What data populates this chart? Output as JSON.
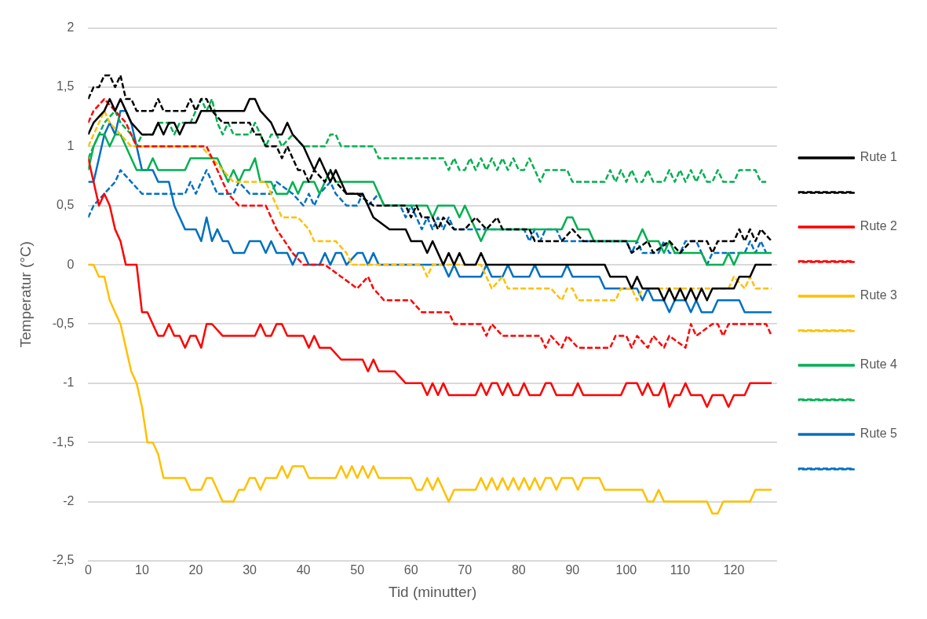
{
  "chart_data": {
    "type": "line",
    "xlabel": "Tid (minutter)",
    "ylabel": "Temperatur (°C)",
    "xlim": [
      0,
      128
    ],
    "xticks": [
      0,
      10,
      20,
      30,
      40,
      50,
      60,
      70,
      80,
      90,
      100,
      110,
      120
    ],
    "ylim": [
      -2.5,
      2
    ],
    "yticks": [
      {
        "value": -2.5,
        "label": "-2,5"
      },
      -2,
      {
        "value": -1.5,
        "label": "-1,5"
      },
      -1,
      {
        "value": -0.5,
        "label": "-0,5"
      },
      0,
      {
        "value": 0.5,
        "label": "0,5"
      },
      1,
      {
        "value": 1.5,
        "label": "1,5"
      },
      2
    ],
    "grid": "y",
    "legend": "right",
    "marker": "none",
    "series": [
      {
        "name": "Rute 1",
        "color": "#000000",
        "line_style": "solid",
        "x": [
          0,
          1,
          3,
          4,
          5,
          6,
          7,
          8,
          10,
          12,
          13,
          14,
          15,
          16,
          17,
          18,
          20,
          21,
          29,
          30,
          31,
          32,
          34,
          35,
          36,
          37,
          38,
          40,
          41,
          42,
          43,
          44,
          45,
          46,
          47,
          48,
          51,
          52,
          53,
          56,
          59,
          60,
          62,
          63,
          64,
          65,
          66,
          67,
          68,
          69,
          70,
          72,
          73,
          74,
          96,
          97,
          100,
          101,
          102,
          103,
          106,
          107,
          108,
          109,
          110,
          111,
          112,
          113,
          114,
          115,
          116,
          120,
          121,
          123,
          124,
          127
        ],
        "values": [
          1.1,
          1.2,
          1.3,
          1.4,
          1.3,
          1.4,
          1.3,
          1.2,
          1.1,
          1.1,
          1.2,
          1.1,
          1.2,
          1.2,
          1.1,
          1.2,
          1.2,
          1.3,
          1.3,
          1.4,
          1.4,
          1.3,
          1.2,
          1.1,
          1.1,
          1.2,
          1.1,
          1.0,
          0.9,
          0.8,
          0.9,
          0.8,
          0.7,
          0.8,
          0.7,
          0.6,
          0.6,
          0.5,
          0.4,
          0.3,
          0.3,
          0.2,
          0.2,
          0.1,
          0.2,
          0.1,
          0.0,
          0.1,
          0.0,
          0.1,
          0.0,
          0.0,
          0.1,
          0.0,
          0.0,
          -0.1,
          -0.1,
          -0.2,
          -0.1,
          -0.2,
          -0.2,
          -0.3,
          -0.2,
          -0.3,
          -0.2,
          -0.3,
          -0.2,
          -0.3,
          -0.2,
          -0.3,
          -0.2,
          -0.2,
          -0.1,
          -0.1,
          0.0,
          0.0
        ]
      },
      {
        "color": "#000000",
        "line_style": "dashed",
        "x": [
          0,
          1,
          2,
          3,
          4,
          5,
          6,
          7,
          8,
          9,
          10,
          12,
          13,
          14,
          15,
          17,
          18,
          19,
          20,
          21,
          22,
          23,
          25,
          29,
          30,
          31,
          32,
          33,
          34,
          35,
          36,
          37,
          38,
          39,
          40,
          41,
          42,
          44,
          45,
          46,
          48,
          50,
          53,
          57,
          59,
          60,
          61,
          62,
          64,
          65,
          66,
          68,
          70,
          72,
          74,
          76,
          77,
          80,
          82,
          83,
          88,
          90,
          92,
          100,
          101,
          104,
          105,
          108,
          110,
          112,
          115,
          116,
          117,
          120,
          121,
          122,
          123,
          124,
          125,
          127
        ],
        "values": [
          1.4,
          1.5,
          1.5,
          1.6,
          1.6,
          1.5,
          1.6,
          1.4,
          1.4,
          1.3,
          1.3,
          1.3,
          1.4,
          1.3,
          1.3,
          1.3,
          1.3,
          1.4,
          1.3,
          1.4,
          1.4,
          1.3,
          1.2,
          1.2,
          1.2,
          1.1,
          1.1,
          1.0,
          1.0,
          1.0,
          0.9,
          1.0,
          0.9,
          0.8,
          0.8,
          0.7,
          0.8,
          0.7,
          0.8,
          0.7,
          0.6,
          0.6,
          0.5,
          0.5,
          0.5,
          0.4,
          0.5,
          0.4,
          0.4,
          0.3,
          0.4,
          0.3,
          0.3,
          0.4,
          0.3,
          0.4,
          0.3,
          0.3,
          0.3,
          0.2,
          0.2,
          0.3,
          0.2,
          0.2,
          0.1,
          0.2,
          0.1,
          0.2,
          0.1,
          0.2,
          0.2,
          0.1,
          0.2,
          0.2,
          0.3,
          0.2,
          0.3,
          0.2,
          0.3,
          0.2
        ]
      },
      {
        "name": "Rute 2",
        "color": "#ff0000",
        "line_style": "solid",
        "x": [
          0,
          1,
          2,
          3,
          4,
          5,
          6,
          7,
          9,
          10,
          11,
          12,
          13,
          14,
          15,
          16,
          17,
          18,
          19,
          20,
          21,
          22,
          23,
          25,
          31,
          32,
          33,
          34,
          35,
          36,
          37,
          40,
          41,
          42,
          43,
          45,
          47,
          51,
          52,
          53,
          54,
          57,
          59,
          62,
          63,
          64,
          65,
          66,
          67,
          72,
          73,
          74,
          75,
          76,
          77,
          78,
          79,
          80,
          81,
          82,
          84,
          85,
          86,
          87,
          90,
          91,
          92,
          99,
          100,
          102,
          103,
          104,
          105,
          106,
          107,
          108,
          109,
          110,
          111,
          112,
          114,
          115,
          116,
          118,
          119,
          120,
          122,
          123,
          127
        ],
        "values": [
          0.9,
          0.7,
          0.5,
          0.6,
          0.5,
          0.3,
          0.2,
          0.0,
          0.0,
          -0.4,
          -0.4,
          -0.5,
          -0.6,
          -0.6,
          -0.5,
          -0.6,
          -0.6,
          -0.7,
          -0.6,
          -0.6,
          -0.7,
          -0.5,
          -0.5,
          -0.6,
          -0.6,
          -0.5,
          -0.6,
          -0.6,
          -0.5,
          -0.5,
          -0.6,
          -0.6,
          -0.7,
          -0.6,
          -0.7,
          -0.7,
          -0.8,
          -0.8,
          -0.9,
          -0.8,
          -0.9,
          -0.9,
          -1.0,
          -1.0,
          -1.1,
          -1.0,
          -1.1,
          -1.0,
          -1.1,
          -1.1,
          -1.0,
          -1.1,
          -1.0,
          -1.0,
          -1.1,
          -1.0,
          -1.1,
          -1.1,
          -1.0,
          -1.1,
          -1.1,
          -1.0,
          -1.0,
          -1.1,
          -1.1,
          -1.0,
          -1.1,
          -1.1,
          -1.0,
          -1.0,
          -1.1,
          -1.0,
          -1.1,
          -1.1,
          -1.0,
          -1.2,
          -1.1,
          -1.1,
          -1.0,
          -1.1,
          -1.1,
          -1.2,
          -1.1,
          -1.1,
          -1.2,
          -1.1,
          -1.1,
          -1.0,
          -1.0
        ]
      },
      {
        "color": "#ff0000",
        "line_style": "dashed",
        "x": [
          0,
          1,
          3,
          5,
          7,
          8,
          9,
          22,
          24,
          26,
          28,
          33,
          35,
          38,
          40,
          44,
          47,
          50,
          52,
          53,
          55,
          60,
          62,
          67,
          68,
          73,
          74,
          75,
          77,
          84,
          85,
          86,
          88,
          89,
          91,
          97,
          98,
          100,
          101,
          102,
          104,
          105,
          107,
          108,
          111,
          112,
          113,
          116,
          117,
          118,
          119,
          126,
          127
        ],
        "values": [
          1.2,
          1.3,
          1.4,
          1.3,
          1.2,
          1.1,
          1.0,
          1.0,
          0.8,
          0.6,
          0.5,
          0.5,
          0.3,
          0.1,
          0.0,
          0.0,
          -0.1,
          -0.2,
          -0.1,
          -0.2,
          -0.3,
          -0.3,
          -0.4,
          -0.4,
          -0.5,
          -0.5,
          -0.6,
          -0.5,
          -0.6,
          -0.6,
          -0.7,
          -0.6,
          -0.7,
          -0.6,
          -0.7,
          -0.7,
          -0.6,
          -0.6,
          -0.7,
          -0.6,
          -0.7,
          -0.6,
          -0.7,
          -0.6,
          -0.7,
          -0.5,
          -0.6,
          -0.5,
          -0.5,
          -0.6,
          -0.5,
          -0.5,
          -0.6
        ]
      },
      {
        "name": "Rute 3",
        "color": "#ffc000",
        "line_style": "solid",
        "x": [
          0,
          1,
          2,
          3,
          4,
          5,
          6,
          7,
          8,
          9,
          10,
          11,
          12,
          13,
          14,
          18,
          19,
          21,
          22,
          23,
          24,
          25,
          27,
          28,
          29,
          30,
          31,
          32,
          33,
          35,
          36,
          37,
          38,
          40,
          41,
          46,
          47,
          48,
          49,
          50,
          51,
          52,
          53,
          54,
          60,
          61,
          62,
          63,
          64,
          65,
          66,
          67,
          68,
          72,
          73,
          74,
          75,
          76,
          77,
          78,
          79,
          80,
          81,
          82,
          83,
          84,
          85,
          86,
          87,
          88,
          90,
          91,
          92,
          95,
          96,
          103,
          104,
          105,
          106,
          107,
          115,
          116,
          117,
          118,
          123,
          124,
          127
        ],
        "values": [
          0,
          0,
          -0.1,
          -0.1,
          -0.3,
          -0.4,
          -0.5,
          -0.7,
          -0.9,
          -1.0,
          -1.2,
          -1.5,
          -1.5,
          -1.6,
          -1.8,
          -1.8,
          -1.9,
          -1.9,
          -1.8,
          -1.8,
          -1.9,
          -2.0,
          -2.0,
          -1.9,
          -1.9,
          -1.8,
          -1.8,
          -1.9,
          -1.8,
          -1.8,
          -1.7,
          -1.8,
          -1.7,
          -1.7,
          -1.8,
          -1.8,
          -1.7,
          -1.8,
          -1.7,
          -1.8,
          -1.7,
          -1.8,
          -1.7,
          -1.8,
          -1.8,
          -1.9,
          -1.9,
          -1.8,
          -1.9,
          -1.8,
          -1.9,
          -2.0,
          -1.9,
          -1.9,
          -1.8,
          -1.9,
          -1.8,
          -1.9,
          -1.8,
          -1.9,
          -1.8,
          -1.9,
          -1.8,
          -1.9,
          -1.8,
          -1.9,
          -1.8,
          -1.8,
          -1.9,
          -1.8,
          -1.8,
          -1.9,
          -1.8,
          -1.8,
          -1.9,
          -1.9,
          -2.0,
          -2.0,
          -1.9,
          -2.0,
          -2.0,
          -2.1,
          -2.1,
          -2.0,
          -2.0,
          -1.9,
          -1.9
        ]
      },
      {
        "color": "#ffc000",
        "line_style": "dashed",
        "x": [
          0,
          1,
          2,
          3,
          4,
          6,
          8,
          21,
          23,
          25,
          27,
          33,
          34,
          36,
          39,
          41,
          42,
          46,
          48,
          49,
          62,
          63,
          64,
          73,
          74,
          75,
          77,
          78,
          86,
          88,
          89,
          90,
          91,
          98,
          99,
          101,
          102,
          103,
          119,
          120,
          122,
          123,
          124,
          127
        ],
        "values": [
          1.0,
          1.1,
          1.2,
          1.3,
          1.2,
          1.1,
          1.0,
          1.0,
          0.9,
          0.8,
          0.7,
          0.7,
          0.6,
          0.4,
          0.4,
          0.3,
          0.2,
          0.2,
          0.1,
          0.0,
          0.0,
          -0.1,
          0.0,
          0.0,
          -0.1,
          -0.2,
          -0.1,
          -0.2,
          -0.2,
          -0.3,
          -0.2,
          -0.2,
          -0.3,
          -0.3,
          -0.2,
          -0.2,
          -0.3,
          -0.2,
          -0.2,
          -0.1,
          -0.2,
          -0.1,
          -0.2,
          -0.2
        ]
      },
      {
        "name": "Rute 4",
        "color": "#00b050",
        "line_style": "solid",
        "x": [
          0,
          1,
          2,
          3,
          4,
          5,
          6,
          7,
          8,
          9,
          11,
          12,
          13,
          18,
          19,
          24,
          25,
          26,
          27,
          28,
          29,
          30,
          31,
          32,
          34,
          35,
          37,
          38,
          39,
          40,
          42,
          43,
          44,
          45,
          46,
          53,
          55,
          63,
          64,
          65,
          68,
          69,
          70,
          71,
          72,
          73,
          74,
          88,
          89,
          90,
          91,
          93,
          94,
          102,
          103,
          104,
          106,
          107,
          108,
          109,
          114,
          115,
          118,
          119,
          120,
          121,
          127
        ],
        "values": [
          0.8,
          1.0,
          1.1,
          1.1,
          1.0,
          1.1,
          1.1,
          1.0,
          0.9,
          0.8,
          0.8,
          0.9,
          0.8,
          0.8,
          0.9,
          0.9,
          0.8,
          0.7,
          0.8,
          0.7,
          0.8,
          0.8,
          0.9,
          0.7,
          0.7,
          0.6,
          0.6,
          0.7,
          0.6,
          0.7,
          0.7,
          0.6,
          0.7,
          0.8,
          0.7,
          0.7,
          0.5,
          0.5,
          0.4,
          0.5,
          0.5,
          0.4,
          0.5,
          0.4,
          0.3,
          0.2,
          0.3,
          0.3,
          0.4,
          0.4,
          0.3,
          0.3,
          0.2,
          0.2,
          0.3,
          0.2,
          0.2,
          0.1,
          0.2,
          0.1,
          0.1,
          0.0,
          0.0,
          0.1,
          0.0,
          0.1,
          0.1
        ]
      },
      {
        "color": "#00b050",
        "line_style": "dashed",
        "x": [
          0,
          1,
          2,
          3,
          5,
          6,
          8,
          9,
          10,
          12,
          13,
          15,
          16,
          17,
          19,
          20,
          21,
          22,
          23,
          24,
          25,
          26,
          27,
          30,
          31,
          32,
          33,
          34,
          35,
          36,
          38,
          40,
          44,
          45,
          46,
          47,
          53,
          54,
          66,
          67,
          68,
          69,
          70,
          71,
          72,
          73,
          74,
          75,
          76,
          77,
          78,
          79,
          80,
          81,
          82,
          83,
          84,
          85,
          89,
          90,
          96,
          97,
          98,
          99,
          100,
          101,
          102,
          103,
          104,
          105,
          107,
          108,
          109,
          110,
          111,
          112,
          113,
          114,
          115,
          116,
          117,
          118,
          120,
          121,
          124,
          125,
          126
        ],
        "values": [
          0.9,
          1.0,
          1.1,
          1.2,
          1.3,
          1.2,
          1.1,
          1.0,
          1.1,
          1.1,
          1.2,
          1.2,
          1.1,
          1.2,
          1.2,
          1.3,
          1.4,
          1.3,
          1.4,
          1.2,
          1.1,
          1.2,
          1.1,
          1.1,
          1.2,
          1.1,
          1.0,
          1.1,
          1.1,
          1.0,
          1.1,
          1.0,
          1.0,
          1.1,
          1.1,
          1.0,
          1.0,
          0.9,
          0.9,
          0.8,
          0.9,
          0.8,
          0.8,
          0.9,
          0.8,
          0.9,
          0.8,
          0.9,
          0.8,
          0.9,
          0.8,
          0.9,
          0.8,
          0.8,
          0.9,
          0.8,
          0.7,
          0.8,
          0.8,
          0.7,
          0.7,
          0.8,
          0.7,
          0.8,
          0.7,
          0.8,
          0.7,
          0.7,
          0.8,
          0.7,
          0.7,
          0.8,
          0.7,
          0.8,
          0.7,
          0.8,
          0.7,
          0.8,
          0.7,
          0.7,
          0.8,
          0.7,
          0.7,
          0.8,
          0.8,
          0.7,
          0.7
        ]
      },
      {
        "name": "Rute 5",
        "color": "#0070c0",
        "line_style": "solid",
        "x": [
          0,
          1,
          2,
          3,
          4,
          5,
          6,
          7,
          8,
          9,
          10,
          12,
          13,
          15,
          16,
          17,
          18,
          20,
          21,
          22,
          23,
          24,
          25,
          26,
          27,
          29,
          30,
          32,
          33,
          34,
          35,
          37,
          38,
          39,
          40,
          41,
          43,
          44,
          45,
          46,
          47,
          48,
          50,
          51,
          52,
          53,
          54,
          66,
          67,
          68,
          69,
          73,
          74,
          75,
          77,
          78,
          79,
          82,
          83,
          84,
          88,
          89,
          90,
          95,
          96,
          102,
          103,
          104,
          105,
          107,
          108,
          109,
          111,
          112,
          113,
          114,
          116,
          117,
          121,
          122,
          125,
          127
        ],
        "values": [
          0.7,
          0.7,
          0.9,
          1.1,
          1.2,
          1.1,
          1.3,
          1.3,
          1.2,
          1.0,
          0.8,
          0.8,
          0.7,
          0.7,
          0.5,
          0.4,
          0.3,
          0.3,
          0.2,
          0.4,
          0.2,
          0.3,
          0.2,
          0.2,
          0.1,
          0.1,
          0.2,
          0.2,
          0.1,
          0.2,
          0.1,
          0.1,
          0.0,
          0.1,
          0.1,
          0.0,
          0.0,
          0.1,
          0.0,
          0.1,
          0.1,
          0.0,
          0.1,
          0.1,
          0.0,
          0.1,
          0.0,
          0.0,
          -0.1,
          0.0,
          -0.1,
          -0.1,
          0.0,
          -0.1,
          -0.1,
          0.0,
          -0.1,
          -0.1,
          0.0,
          -0.1,
          -0.1,
          0.0,
          -0.1,
          -0.1,
          -0.2,
          -0.2,
          -0.3,
          -0.2,
          -0.3,
          -0.3,
          -0.4,
          -0.3,
          -0.3,
          -0.4,
          -0.3,
          -0.4,
          -0.4,
          -0.3,
          -0.3,
          -0.4,
          -0.4,
          -0.4
        ]
      },
      {
        "color": "#0070c0",
        "line_style": "dashed",
        "x": [
          0,
          1,
          3,
          5,
          6,
          8,
          10,
          18,
          19,
          20,
          21,
          22,
          23,
          24,
          27,
          28,
          30,
          34,
          35,
          38,
          40,
          41,
          42,
          43,
          45,
          46,
          48,
          50,
          51,
          52,
          54,
          55,
          58,
          59,
          60,
          61,
          62,
          63,
          64,
          65,
          66,
          67,
          68,
          81,
          82,
          83,
          84,
          85,
          87,
          88,
          100,
          101,
          102,
          103,
          106,
          107,
          108,
          110,
          111,
          113,
          114,
          115,
          116,
          122,
          123,
          124,
          125,
          126
        ],
        "values": [
          0.4,
          0.5,
          0.6,
          0.7,
          0.8,
          0.7,
          0.6,
          0.6,
          0.7,
          0.6,
          0.7,
          0.8,
          0.7,
          0.6,
          0.6,
          0.7,
          0.6,
          0.6,
          0.7,
          0.6,
          0.5,
          0.6,
          0.5,
          0.6,
          0.7,
          0.6,
          0.5,
          0.5,
          0.6,
          0.5,
          0.6,
          0.5,
          0.5,
          0.4,
          0.5,
          0.4,
          0.3,
          0.4,
          0.3,
          0.4,
          0.3,
          0.4,
          0.3,
          0.3,
          0.2,
          0.3,
          0.2,
          0.3,
          0.3,
          0.2,
          0.2,
          0.1,
          0.2,
          0.1,
          0.1,
          0.2,
          0.1,
          0.1,
          0.2,
          0.2,
          0.1,
          0.0,
          0.1,
          0.1,
          0.2,
          0.1,
          0.2,
          0.1
        ]
      }
    ]
  }
}
